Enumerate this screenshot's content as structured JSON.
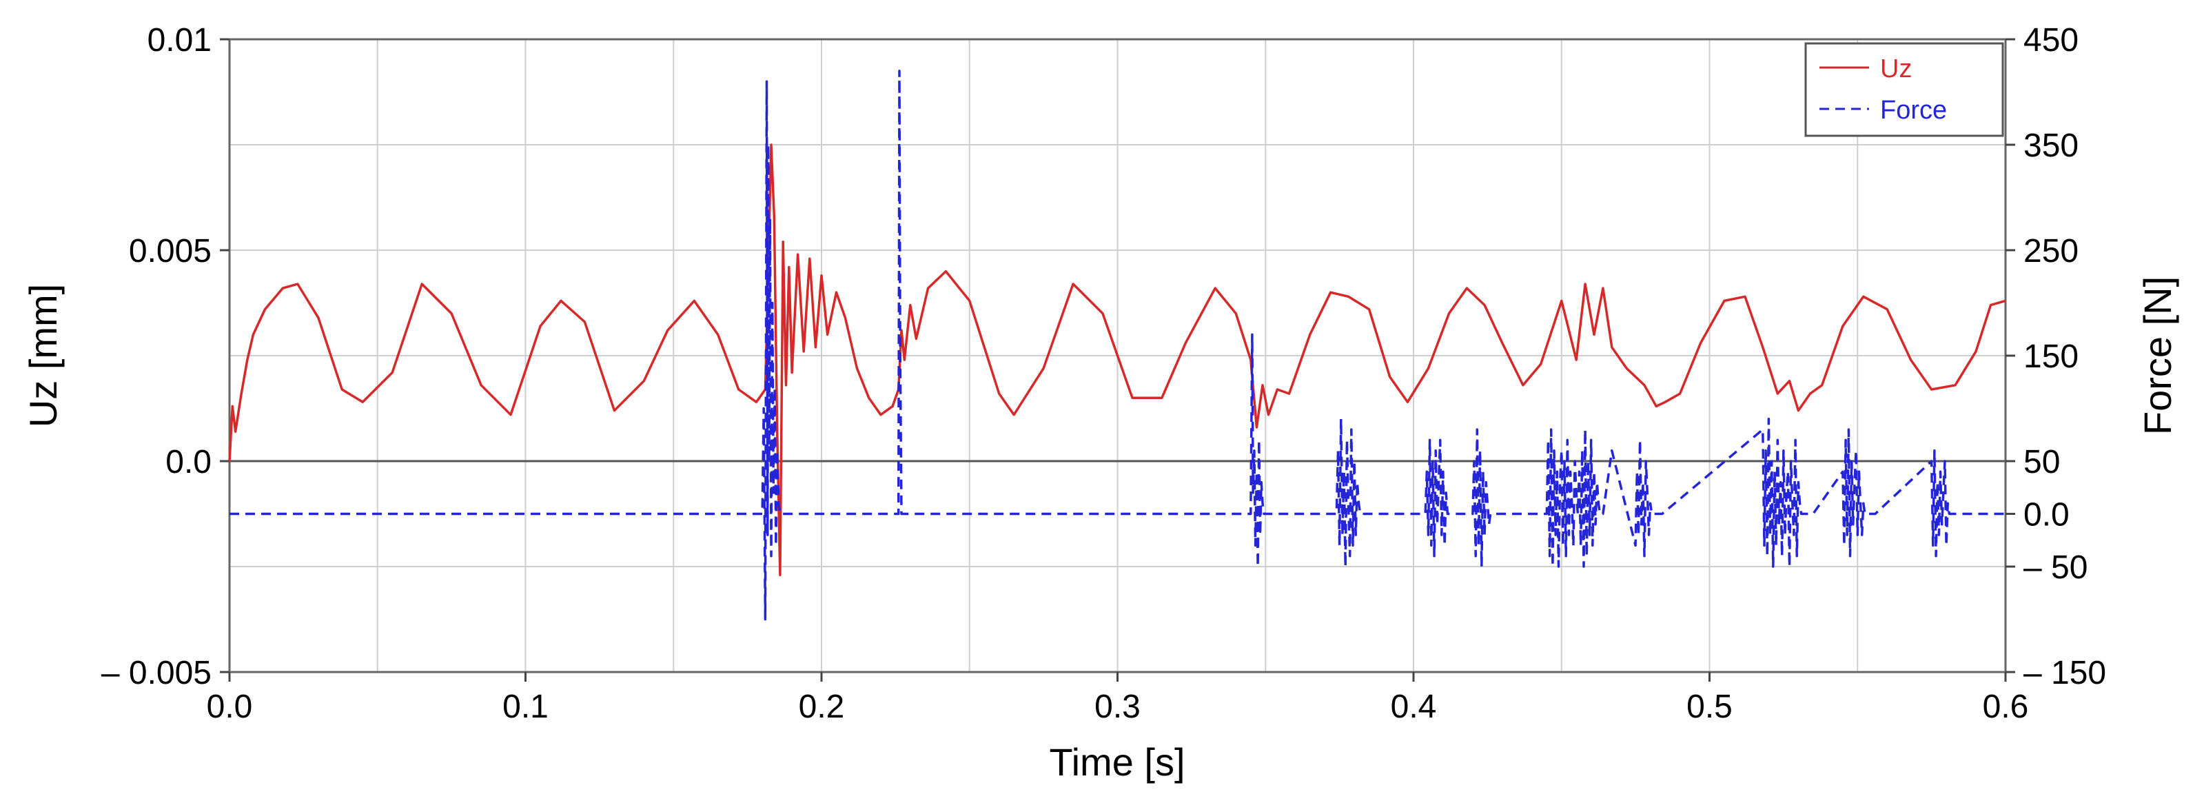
{
  "chart_data": {
    "type": "line",
    "title": "",
    "xlabel": "Time [s]",
    "ylabel": "Uz [mm]",
    "y2label": "Force [N]",
    "xlim": [
      0.0,
      0.6
    ],
    "ylim": [
      -0.005,
      0.01
    ],
    "y2lim": [
      -150,
      450
    ],
    "grid": true,
    "legend_position": "top-right",
    "x_ticks": [
      0.0,
      0.1,
      0.2,
      0.3,
      0.4,
      0.5,
      0.6
    ],
    "x_tick_labels": [
      "0.0",
      "0.1",
      "0.2",
      "0.3",
      "0.4",
      "0.5",
      "0.6"
    ],
    "y_ticks": [
      -0.005,
      0.0,
      0.005,
      0.01
    ],
    "y_tick_labels": [
      "– 0.005",
      "0.0",
      "0.005",
      "0.01"
    ],
    "y2_ticks": [
      -150,
      -50,
      0,
      50,
      150,
      250,
      350,
      450
    ],
    "y2_tick_labels": [
      "– 150",
      "– 50",
      "0.0",
      "50",
      "150",
      "250",
      "350",
      "450"
    ],
    "series": [
      {
        "name": "Uz",
        "axis": "left",
        "style": "solid",
        "color": "#d62a2a",
        "x": [
          0.0,
          0.001,
          0.002,
          0.004,
          0.006,
          0.008,
          0.012,
          0.018,
          0.023,
          0.03,
          0.038,
          0.045,
          0.055,
          0.065,
          0.075,
          0.085,
          0.095,
          0.105,
          0.112,
          0.12,
          0.13,
          0.14,
          0.148,
          0.157,
          0.165,
          0.172,
          0.178,
          0.181,
          0.182,
          0.183,
          0.184,
          0.185,
          0.186,
          0.187,
          0.188,
          0.189,
          0.19,
          0.192,
          0.194,
          0.196,
          0.198,
          0.2,
          0.202,
          0.205,
          0.208,
          0.212,
          0.216,
          0.22,
          0.224,
          0.226,
          0.227,
          0.228,
          0.23,
          0.232,
          0.236,
          0.242,
          0.25,
          0.26,
          0.265,
          0.275,
          0.285,
          0.295,
          0.305,
          0.315,
          0.323,
          0.333,
          0.34,
          0.345,
          0.347,
          0.349,
          0.351,
          0.354,
          0.358,
          0.365,
          0.372,
          0.378,
          0.385,
          0.392,
          0.398,
          0.405,
          0.412,
          0.418,
          0.424,
          0.43,
          0.437,
          0.443,
          0.45,
          0.455,
          0.458,
          0.461,
          0.464,
          0.467,
          0.472,
          0.478,
          0.482,
          0.485,
          0.49,
          0.497,
          0.505,
          0.512,
          0.518,
          0.523,
          0.527,
          0.53,
          0.534,
          0.538,
          0.545,
          0.552,
          0.56,
          0.568,
          0.575,
          0.583,
          0.59,
          0.595,
          0.6
        ],
        "values": [
          0.0,
          0.0013,
          0.0007,
          0.0016,
          0.0024,
          0.003,
          0.0036,
          0.0041,
          0.0042,
          0.0034,
          0.0017,
          0.0014,
          0.0021,
          0.0042,
          0.0035,
          0.0018,
          0.0011,
          0.0032,
          0.0038,
          0.0033,
          0.0012,
          0.0019,
          0.0031,
          0.0038,
          0.003,
          0.0017,
          0.0014,
          0.0017,
          0.0045,
          0.0075,
          0.0058,
          0.0008,
          -0.0027,
          0.0052,
          0.0018,
          0.0046,
          0.0021,
          0.0049,
          0.0026,
          0.0048,
          0.0027,
          0.0044,
          0.003,
          0.004,
          0.0034,
          0.0022,
          0.0015,
          0.0011,
          0.0013,
          0.0017,
          0.0031,
          0.0024,
          0.0037,
          0.0029,
          0.0041,
          0.0045,
          0.0038,
          0.0016,
          0.0011,
          0.0022,
          0.0042,
          0.0035,
          0.0015,
          0.0015,
          0.0028,
          0.0041,
          0.0035,
          0.0024,
          0.0008,
          0.0018,
          0.0011,
          0.0017,
          0.0016,
          0.003,
          0.004,
          0.0039,
          0.0036,
          0.002,
          0.0014,
          0.0022,
          0.0035,
          0.0041,
          0.0037,
          0.0028,
          0.0018,
          0.0023,
          0.0038,
          0.0024,
          0.0042,
          0.003,
          0.0041,
          0.0027,
          0.0022,
          0.0018,
          0.0013,
          0.0014,
          0.0016,
          0.0028,
          0.0038,
          0.0039,
          0.0027,
          0.0016,
          0.0019,
          0.0012,
          0.0016,
          0.0018,
          0.0032,
          0.0039,
          0.0036,
          0.0024,
          0.0017,
          0.0018,
          0.0026,
          0.0037,
          0.0038
        ]
      },
      {
        "name": "Force",
        "axis": "right",
        "style": "dashed",
        "color": "#2525d8",
        "x": [
          0.0,
          0.1,
          0.18,
          0.1805,
          0.181,
          0.1815,
          0.1818,
          0.182,
          0.1823,
          0.1826,
          0.183,
          0.1834,
          0.1838,
          0.1842,
          0.1846,
          0.185,
          0.1855,
          0.186,
          0.2,
          0.226,
          0.2263,
          0.2266,
          0.227,
          0.23,
          0.3,
          0.345,
          0.3455,
          0.3458,
          0.3462,
          0.3466,
          0.347,
          0.3474,
          0.3478,
          0.3482,
          0.3486,
          0.349,
          0.3495,
          0.36,
          0.374,
          0.3745,
          0.375,
          0.3755,
          0.376,
          0.3765,
          0.377,
          0.3775,
          0.378,
          0.3785,
          0.379,
          0.3795,
          0.38,
          0.3805,
          0.381,
          0.3815,
          0.382,
          0.385,
          0.404,
          0.4045,
          0.405,
          0.4055,
          0.406,
          0.4065,
          0.407,
          0.4075,
          0.408,
          0.4085,
          0.409,
          0.4095,
          0.41,
          0.4105,
          0.411,
          0.4115,
          0.412,
          0.415,
          0.42,
          0.4205,
          0.421,
          0.4215,
          0.422,
          0.4225,
          0.423,
          0.4235,
          0.424,
          0.4245,
          0.425,
          0.4255,
          0.426,
          0.429,
          0.445,
          0.4455,
          0.446,
          0.4465,
          0.447,
          0.4475,
          0.448,
          0.4485,
          0.449,
          0.4495,
          0.45,
          0.4505,
          0.451,
          0.4515,
          0.452,
          0.4525,
          0.453,
          0.4535,
          0.454,
          0.4545,
          0.455,
          0.4555,
          0.456,
          0.4565,
          0.457,
          0.4575,
          0.458,
          0.4585,
          0.459,
          0.4595,
          0.46,
          0.4605,
          0.461,
          0.4615,
          0.462,
          0.4625,
          0.463,
          0.4635,
          0.464,
          0.467,
          0.475,
          0.4755,
          0.476,
          0.4765,
          0.477,
          0.4775,
          0.478,
          0.4785,
          0.479,
          0.4795,
          0.48,
          0.4805,
          0.481,
          0.484,
          0.518,
          0.5185,
          0.519,
          0.5195,
          0.52,
          0.5205,
          0.521,
          0.5215,
          0.522,
          0.5225,
          0.523,
          0.5235,
          0.524,
          0.5245,
          0.525,
          0.5255,
          0.526,
          0.5265,
          0.527,
          0.5275,
          0.528,
          0.5285,
          0.529,
          0.5295,
          0.53,
          0.5305,
          0.531,
          0.5315,
          0.532,
          0.535,
          0.545,
          0.5455,
          0.546,
          0.5465,
          0.547,
          0.5475,
          0.548,
          0.5485,
          0.549,
          0.5495,
          0.55,
          0.5505,
          0.551,
          0.5515,
          0.552,
          0.5525,
          0.553,
          0.556,
          0.575,
          0.5755,
          0.576,
          0.5765,
          0.577,
          0.5775,
          0.578,
          0.5785,
          0.579,
          0.5795,
          0.58,
          0.5805,
          0.581,
          0.584,
          0.6
        ],
        "values": [
          0,
          0,
          0,
          100,
          -100,
          410,
          -20,
          350,
          50,
          280,
          -40,
          200,
          20,
          120,
          -30,
          60,
          10,
          0,
          0,
          0,
          420,
          150,
          0,
          0,
          0,
          0,
          170,
          20,
          60,
          -30,
          40,
          -50,
          70,
          -20,
          30,
          10,
          0,
          0,
          0,
          60,
          -30,
          90,
          -20,
          40,
          -50,
          70,
          10,
          -40,
          80,
          -30,
          50,
          -20,
          30,
          10,
          0,
          0,
          0,
          40,
          -20,
          70,
          -30,
          50,
          -40,
          60,
          -10,
          30,
          70,
          -20,
          40,
          -30,
          20,
          0,
          0,
          0,
          0,
          50,
          -40,
          80,
          -30,
          60,
          -50,
          40,
          -20,
          30,
          10,
          -10,
          0,
          0,
          0,
          70,
          -40,
          80,
          -50,
          60,
          -20,
          40,
          -50,
          30,
          60,
          -30,
          50,
          -40,
          70,
          -20,
          40,
          10,
          -30,
          50,
          20,
          0,
          40,
          -30,
          60,
          -50,
          80,
          -40,
          50,
          -20,
          70,
          -30,
          40,
          -10,
          30,
          10,
          0,
          0,
          0,
          60,
          -30,
          40,
          -20,
          70,
          -10,
          30,
          -40,
          50,
          20,
          -20,
          10,
          0,
          0,
          0,
          80,
          -30,
          60,
          -40,
          90,
          -20,
          50,
          -50,
          40,
          -30,
          70,
          -10,
          30,
          -40,
          60,
          -20,
          20,
          40,
          -50,
          50,
          10,
          -20,
          70,
          -40,
          30,
          10,
          0,
          0,
          0,
          0,
          40,
          -30,
          70,
          -20,
          80,
          -40,
          50,
          -10,
          30,
          60,
          -20,
          40,
          10,
          -20,
          10,
          0,
          0,
          0,
          50,
          -30,
          60,
          -40,
          30,
          -20,
          40,
          -10,
          20,
          50,
          -30,
          10,
          0,
          0,
          0
        ]
      }
    ]
  }
}
